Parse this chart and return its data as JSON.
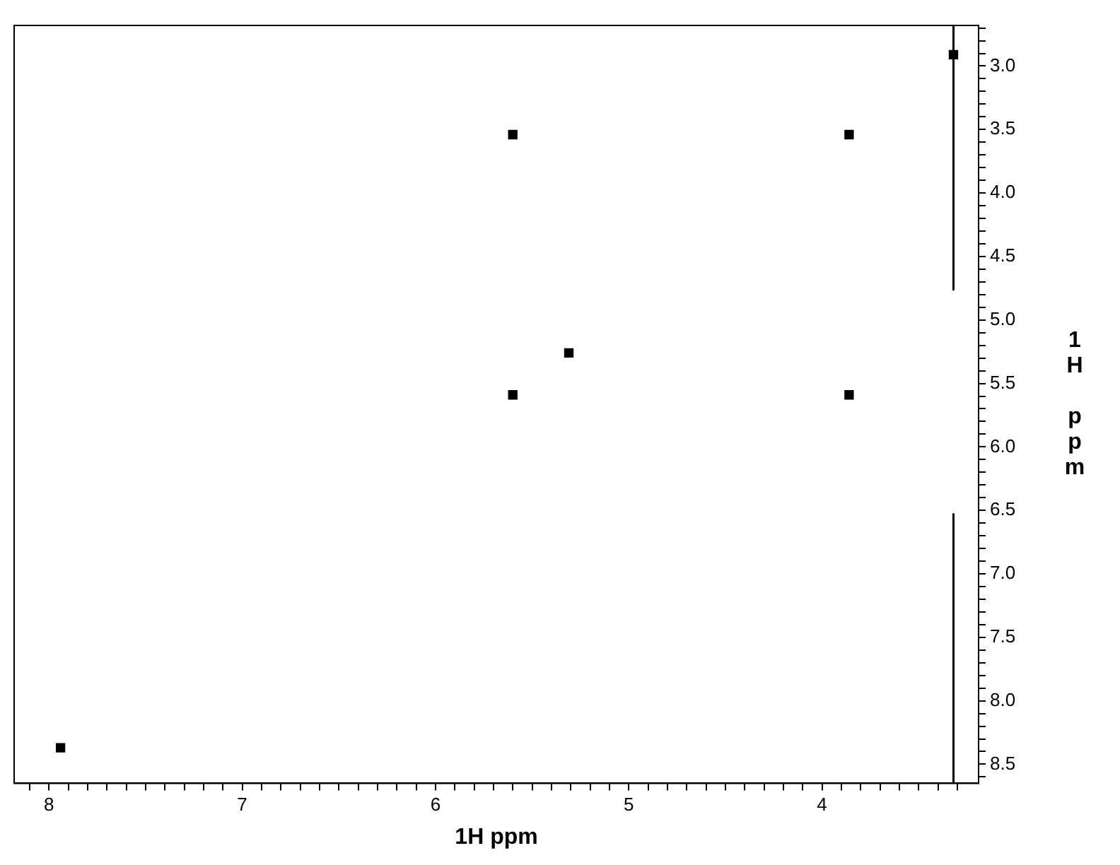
{
  "chart_data": {
    "type": "scatter",
    "xlabel": "1H ppm",
    "ylabel": "1H ppm",
    "legend": false,
    "grid": false,
    "xlim": [
      8.18,
      3.19
    ],
    "ylim": [
      8.65,
      2.68
    ],
    "xticks": [
      {
        "value": 3.3,
        "label": null
      },
      {
        "value": 3.4,
        "label": null
      },
      {
        "value": 3.5,
        "label": null
      },
      {
        "value": 3.6,
        "label": null
      },
      {
        "value": 3.7,
        "label": null
      },
      {
        "value": 3.8,
        "label": null
      },
      {
        "value": 3.9,
        "label": null
      },
      4,
      {
        "value": 4.1,
        "label": null
      },
      {
        "value": 4.2,
        "label": null
      },
      {
        "value": 4.3,
        "label": null
      },
      {
        "value": 4.4,
        "label": null
      },
      {
        "value": 4.5,
        "label": null
      },
      {
        "value": 4.6,
        "label": null
      },
      {
        "value": 4.7,
        "label": null
      },
      {
        "value": 4.8,
        "label": null
      },
      {
        "value": 4.9,
        "label": null
      },
      5,
      {
        "value": 5.1,
        "label": null
      },
      {
        "value": 5.2,
        "label": null
      },
      {
        "value": 5.3,
        "label": null
      },
      {
        "value": 5.4,
        "label": null
      },
      {
        "value": 5.5,
        "label": null
      },
      {
        "value": 5.6,
        "label": null
      },
      {
        "value": 5.7,
        "label": null
      },
      {
        "value": 5.8,
        "label": null
      },
      {
        "value": 5.9,
        "label": null
      },
      6,
      {
        "value": 6.1,
        "label": null
      },
      {
        "value": 6.2,
        "label": null
      },
      {
        "value": 6.3,
        "label": null
      },
      {
        "value": 6.4,
        "label": null
      },
      {
        "value": 6.5,
        "label": null
      },
      {
        "value": 6.6,
        "label": null
      },
      {
        "value": 6.7,
        "label": null
      },
      {
        "value": 6.8,
        "label": null
      },
      {
        "value": 6.9,
        "label": null
      },
      7,
      {
        "value": 7.1,
        "label": null
      },
      {
        "value": 7.2,
        "label": null
      },
      {
        "value": 7.3,
        "label": null
      },
      {
        "value": 7.4,
        "label": null
      },
      {
        "value": 7.5,
        "label": null
      },
      {
        "value": 7.6,
        "label": null
      },
      {
        "value": 7.7,
        "label": null
      },
      {
        "value": 7.8,
        "label": null
      },
      {
        "value": 7.9,
        "label": null
      },
      8,
      {
        "value": 8.1,
        "label": null
      }
    ],
    "yticks": [
      {
        "value": 2.7,
        "label": null
      },
      {
        "value": 2.8,
        "label": null
      },
      {
        "value": 2.9,
        "label": null
      },
      {
        "value": 3,
        "label": "3.0"
      },
      {
        "value": 3.1,
        "label": null
      },
      {
        "value": 3.2,
        "label": null
      },
      {
        "value": 3.3,
        "label": null
      },
      {
        "value": 3.4,
        "label": null
      },
      3.5,
      {
        "value": 3.6,
        "label": null
      },
      {
        "value": 3.7,
        "label": null
      },
      {
        "value": 3.8,
        "label": null
      },
      {
        "value": 3.9,
        "label": null
      },
      {
        "value": 4,
        "label": "4.0"
      },
      {
        "value": 4.1,
        "label": null
      },
      {
        "value": 4.2,
        "label": null
      },
      {
        "value": 4.3,
        "label": null
      },
      {
        "value": 4.4,
        "label": null
      },
      4.5,
      {
        "value": 4.6,
        "label": null
      },
      {
        "value": 4.7,
        "label": null
      },
      {
        "value": 4.8,
        "label": null
      },
      {
        "value": 4.9,
        "label": null
      },
      {
        "value": 5,
        "label": "5.0"
      },
      {
        "value": 5.1,
        "label": null
      },
      {
        "value": 5.2,
        "label": null
      },
      {
        "value": 5.3,
        "label": null
      },
      {
        "value": 5.4,
        "label": null
      },
      5.5,
      {
        "value": 5.6,
        "label": null
      },
      {
        "value": 5.7,
        "label": null
      },
      {
        "value": 5.8,
        "label": null
      },
      {
        "value": 5.9,
        "label": null
      },
      {
        "value": 6,
        "label": "6.0"
      },
      {
        "value": 6.1,
        "label": null
      },
      {
        "value": 6.2,
        "label": null
      },
      {
        "value": 6.3,
        "label": null
      },
      {
        "value": 6.4,
        "label": null
      },
      6.5,
      {
        "value": 6.6,
        "label": null
      },
      {
        "value": 6.7,
        "label": null
      },
      {
        "value": 6.8,
        "label": null
      },
      {
        "value": 6.9,
        "label": null
      },
      {
        "value": 7,
        "label": "7.0"
      },
      {
        "value": 7.1,
        "label": null
      },
      {
        "value": 7.2,
        "label": null
      },
      {
        "value": 7.3,
        "label": null
      },
      {
        "value": 7.4,
        "label": null
      },
      7.5,
      {
        "value": 7.6,
        "label": null
      },
      {
        "value": 7.7,
        "label": null
      },
      {
        "value": 7.8,
        "label": null
      },
      {
        "value": 7.9,
        "label": null
      },
      {
        "value": 8,
        "label": "8.0"
      },
      {
        "value": 8.1,
        "label": null
      },
      {
        "value": 8.2,
        "label": null
      },
      {
        "value": 8.3,
        "label": null
      },
      {
        "value": 8.4,
        "label": null
      },
      8.5,
      {
        "value": 8.6,
        "label": null
      }
    ],
    "series": [
      {
        "color": "#000000",
        "marker": "square",
        "x": [
          7.94,
          5.6,
          3.86,
          5.31,
          5.6,
          3.86,
          3.32
        ],
        "values": [
          8.37,
          3.54,
          3.54,
          5.26,
          5.59,
          5.59,
          2.91
        ]
      },
      {
        "type": "line",
        "color": "#000000",
        "marker": "none",
        "x": [
          3.32,
          3.32,
          null,
          3.32,
          3.32
        ],
        "values": [
          2.68,
          4.76,
          null,
          6.53,
          8.65
        ]
      }
    ]
  }
}
